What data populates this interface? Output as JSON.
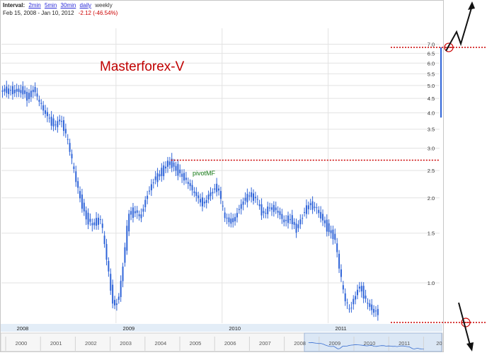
{
  "header": {
    "interval_label": "Interval:",
    "intervals": [
      "2min",
      "5min",
      "30min",
      "daily",
      "weekly"
    ],
    "active_interval": "weekly",
    "date_range": "Feb 15, 2008  -  Jan 10, 2012",
    "change": "-2.12 (-46.54%)"
  },
  "overlay": {
    "brand": "Masterforex-V",
    "pivot": "pivotMF"
  },
  "colors": {
    "candle": "#2f64d8",
    "level_line": "#cc0000",
    "grid": "#e2e2e2",
    "axis_band": "#e3edf7",
    "brand": "#c00000"
  },
  "chart_data": {
    "type": "candlestick",
    "title": "",
    "xlabel": "",
    "ylabel": "",
    "y_scale": "log",
    "ylim": [
      0.72,
      7.7
    ],
    "y_ticks": [
      1.0,
      1.5,
      2.0,
      2.5,
      3.0,
      3.5,
      4.0,
      4.5,
      5.0,
      5.5,
      6.0,
      6.5,
      7.0
    ],
    "y_tick_labels": [
      "1.0",
      "1.5",
      "2.0",
      "2.5",
      "3.0",
      "3.5",
      "4.0",
      "4.5",
      "5.0",
      "5.5",
      "6.0",
      "6.5",
      "7.0"
    ],
    "x_year_labels": [
      "2008",
      "2009",
      "2010",
      "2011"
    ],
    "navigator_year_labels": [
      "2000",
      "2001",
      "2002",
      "2003",
      "2004",
      "2005",
      "2006",
      "2007",
      "2008",
      "2009",
      "2010",
      "2011",
      "20"
    ],
    "pivot_level": 2.72,
    "upper_level": 6.82,
    "lower_level": 0.74,
    "close_points": [
      [
        2008.12,
        4.8
      ],
      [
        2008.17,
        4.5
      ],
      [
        2008.22,
        4.9
      ],
      [
        2008.27,
        4.4
      ],
      [
        2008.35,
        3.9
      ],
      [
        2008.42,
        3.6
      ],
      [
        2008.48,
        3.8
      ],
      [
        2008.55,
        3.1
      ],
      [
        2008.6,
        2.5
      ],
      [
        2008.66,
        2.0
      ],
      [
        2008.72,
        1.7
      ],
      [
        2008.78,
        1.6
      ],
      [
        2008.85,
        1.7
      ],
      [
        2008.9,
        1.3
      ],
      [
        2008.95,
        0.95
      ],
      [
        2008.98,
        0.82
      ],
      [
        2009.03,
        0.9
      ],
      [
        2009.08,
        1.3
      ],
      [
        2009.12,
        1.75
      ],
      [
        2009.18,
        1.8
      ],
      [
        2009.23,
        1.7
      ],
      [
        2009.28,
        2.0
      ],
      [
        2009.35,
        2.3
      ],
      [
        2009.42,
        2.45
      ],
      [
        2009.5,
        2.7
      ],
      [
        2009.56,
        2.55
      ],
      [
        2009.62,
        2.4
      ],
      [
        2009.68,
        2.25
      ],
      [
        2009.75,
        2.05
      ],
      [
        2009.82,
        1.9
      ],
      [
        2009.9,
        2.1
      ],
      [
        2009.96,
        2.2
      ],
      [
        2010.02,
        1.7
      ],
      [
        2010.1,
        1.65
      ],
      [
        2010.18,
        1.9
      ],
      [
        2010.25,
        2.05
      ],
      [
        2010.32,
        2.0
      ],
      [
        2010.38,
        1.75
      ],
      [
        2010.45,
        1.85
      ],
      [
        2010.52,
        1.8
      ],
      [
        2010.58,
        1.65
      ],
      [
        2010.64,
        1.7
      ],
      [
        2010.7,
        1.55
      ],
      [
        2010.76,
        1.75
      ],
      [
        2010.82,
        1.9
      ],
      [
        2010.88,
        1.85
      ],
      [
        2010.94,
        1.7
      ],
      [
        2011.0,
        1.55
      ],
      [
        2011.06,
        1.45
      ],
      [
        2011.1,
        1.15
      ],
      [
        2011.15,
        0.88
      ],
      [
        2011.2,
        0.8
      ],
      [
        2011.25,
        0.9
      ],
      [
        2011.3,
        0.98
      ],
      [
        2011.36,
        0.85
      ],
      [
        2011.42,
        0.8
      ],
      [
        2011.48,
        0.78
      ]
    ]
  }
}
